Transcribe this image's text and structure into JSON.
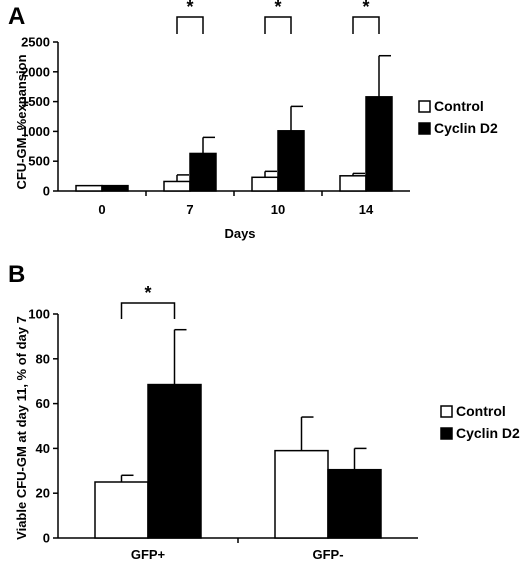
{
  "chart_data": [
    {
      "panel": "A",
      "type": "bar",
      "xlabel": "Days",
      "ylabel": "CFU-GM, %expansion",
      "categories": [
        "0",
        "7",
        "10",
        "14"
      ],
      "ylim": [
        0,
        2500
      ],
      "yticks": [
        "0",
        "500",
        "1000",
        "1500",
        "2000",
        "2500"
      ],
      "series": [
        {
          "name": "Control",
          "color": "#ffffff",
          "values": [
            90,
            160,
            230,
            255
          ],
          "errors": [
            0,
            110,
            100,
            40
          ]
        },
        {
          "name": "Cyclin D2",
          "color": "#000000",
          "values": [
            90,
            630,
            1010,
            1580
          ],
          "errors": [
            0,
            270,
            410,
            690
          ]
        }
      ],
      "significance": [
        {
          "category": "7",
          "label": "*"
        },
        {
          "category": "10",
          "label": "*"
        },
        {
          "category": "14",
          "label": "*"
        }
      ],
      "legend": "right"
    },
    {
      "panel": "B",
      "type": "bar",
      "xlabel": "",
      "ylabel": "Viable CFU-GM at day 11, % of day 7",
      "categories": [
        "GFP+",
        "GFP-"
      ],
      "ylim": [
        0,
        100
      ],
      "yticks": [
        "0",
        "20",
        "40",
        "60",
        "80",
        "100"
      ],
      "series": [
        {
          "name": "Control",
          "color": "#ffffff",
          "values": [
            25,
            39
          ],
          "errors": [
            3,
            15
          ]
        },
        {
          "name": "Cyclin D2",
          "color": "#000000",
          "values": [
            68.5,
            30.5
          ],
          "errors": [
            24.5,
            9.5
          ]
        }
      ],
      "significance": [
        {
          "category": "GFP+",
          "label": "*"
        }
      ],
      "legend": "right"
    }
  ]
}
